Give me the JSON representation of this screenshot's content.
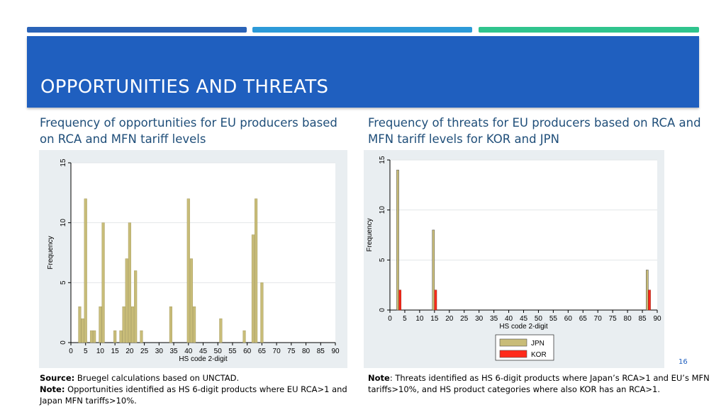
{
  "header": {
    "title": "OPPORTUNITIES AND THREATS",
    "accent_colors": [
      "#2a63b8",
      "#2c9ad8",
      "#2fc48d"
    ],
    "banner_color": "#1f5fbf"
  },
  "left": {
    "subtitle": "Frequency of opportunities for EU producers based on RCA and MFN tariff levels",
    "note_source_label": "Source:",
    "note_source_text": " Bruegel calculations based on UNCTAD.",
    "note_label": "Note:",
    "note_text": " Opportunities identified as HS 6-digit products where EU RCA>1 and Japan MFN tariffs>10%."
  },
  "right": {
    "subtitle": "Frequency of threats for EU producers based on RCA and MFN tariff levels for KOR and JPN",
    "note_label": "Note",
    "note_text": ": Threats identified as HS 6-digit products where Japan’s RCA>1 and EU’s MFN tariffs>10%, and HS product categories where also KOR has an RCA>1."
  },
  "page_number": "16",
  "chart_data": [
    {
      "type": "bar",
      "xlabel": "HS code 2-digit",
      "ylabel": "Frequency",
      "xlim": [
        0,
        90
      ],
      "ylim": [
        0,
        15
      ],
      "xticks": [
        0,
        5,
        10,
        15,
        20,
        25,
        30,
        35,
        40,
        45,
        50,
        55,
        60,
        65,
        70,
        75,
        80,
        85,
        90
      ],
      "yticks": [
        0,
        5,
        10,
        15
      ],
      "grid": true,
      "bar_color": "#c8bc78",
      "points": [
        {
          "x": 3,
          "y": 3
        },
        {
          "x": 4,
          "y": 2
        },
        {
          "x": 5,
          "y": 12
        },
        {
          "x": 7,
          "y": 1
        },
        {
          "x": 8,
          "y": 1
        },
        {
          "x": 10,
          "y": 3
        },
        {
          "x": 11,
          "y": 10
        },
        {
          "x": 15,
          "y": 1
        },
        {
          "x": 17,
          "y": 1
        },
        {
          "x": 18,
          "y": 3
        },
        {
          "x": 19,
          "y": 7
        },
        {
          "x": 20,
          "y": 10
        },
        {
          "x": 21,
          "y": 3
        },
        {
          "x": 22,
          "y": 6
        },
        {
          "x": 24,
          "y": 1
        },
        {
          "x": 34,
          "y": 3
        },
        {
          "x": 40,
          "y": 12
        },
        {
          "x": 41,
          "y": 7
        },
        {
          "x": 42,
          "y": 3
        },
        {
          "x": 51,
          "y": 2
        },
        {
          "x": 59,
          "y": 1
        },
        {
          "x": 62,
          "y": 9
        },
        {
          "x": 63,
          "y": 12
        },
        {
          "x": 65,
          "y": 5
        }
      ]
    },
    {
      "type": "bar",
      "xlabel": "HS code 2-digit",
      "ylabel": "Frequency",
      "xlim": [
        0,
        90
      ],
      "ylim": [
        0,
        15
      ],
      "xticks": [
        0,
        5,
        10,
        15,
        20,
        25,
        30,
        35,
        40,
        45,
        50,
        55,
        60,
        65,
        70,
        75,
        80,
        85,
        90
      ],
      "yticks": [
        0,
        5,
        10,
        15
      ],
      "grid": true,
      "legend_position": "bottom",
      "series": [
        {
          "name": "JPN",
          "color": "#c8bc78",
          "points": [
            {
              "x": 3,
              "y": 14
            },
            {
              "x": 15,
              "y": 8
            },
            {
              "x": 87,
              "y": 4
            }
          ]
        },
        {
          "name": "KOR",
          "color": "#ff2a1a",
          "points": [
            {
              "x": 3,
              "y": 2
            },
            {
              "x": 15,
              "y": 2
            },
            {
              "x": 87,
              "y": 2
            }
          ]
        }
      ]
    }
  ]
}
